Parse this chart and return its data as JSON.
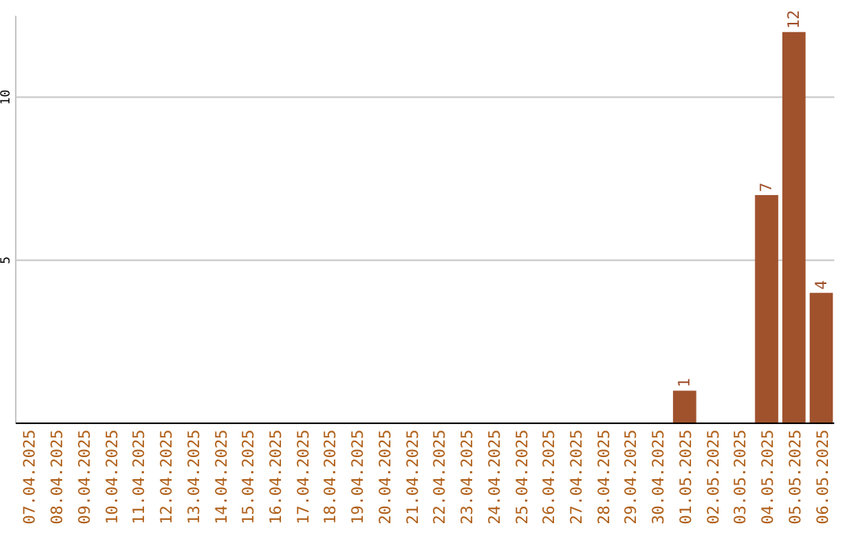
{
  "chart_data": {
    "type": "bar",
    "categories": [
      "07.04.2025",
      "08.04.2025",
      "09.04.2025",
      "10.04.2025",
      "11.04.2025",
      "12.04.2025",
      "13.04.2025",
      "14.04.2025",
      "15.04.2025",
      "16.04.2025",
      "17.04.2025",
      "18.04.2025",
      "19.04.2025",
      "20.04.2025",
      "21.04.2025",
      "22.04.2025",
      "23.04.2025",
      "24.04.2025",
      "25.04.2025",
      "26.04.2025",
      "27.04.2025",
      "28.04.2025",
      "29.04.2025",
      "30.04.2025",
      "01.05.2025",
      "02.05.2025",
      "03.05.2025",
      "04.05.2025",
      "05.05.2025",
      "06.05.2025"
    ],
    "values": [
      0,
      0,
      0,
      0,
      0,
      0,
      0,
      0,
      0,
      0,
      0,
      0,
      0,
      0,
      0,
      0,
      0,
      0,
      0,
      0,
      0,
      0,
      0,
      0,
      1,
      0,
      0,
      7,
      12,
      4
    ],
    "value_labels": [
      null,
      null,
      null,
      null,
      null,
      null,
      null,
      null,
      null,
      null,
      null,
      null,
      null,
      null,
      null,
      null,
      null,
      null,
      null,
      null,
      null,
      null,
      null,
      null,
      "1",
      null,
      null,
      "7",
      "12",
      "4"
    ],
    "color": "#a0522d",
    "ylim": [
      0,
      12.5
    ],
    "yticks": [
      5,
      10
    ],
    "grid": "y"
  }
}
